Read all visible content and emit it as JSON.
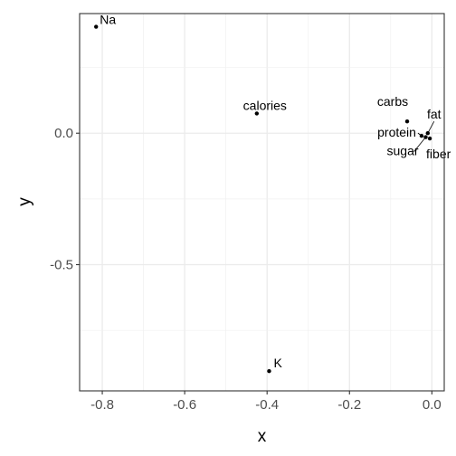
{
  "chart_data": {
    "type": "scatter",
    "title": "",
    "xlabel": "x",
    "ylabel": "y",
    "xlim": [
      -0.855,
      0.03
    ],
    "ylim": [
      -0.98,
      0.455
    ],
    "x_ticks": [
      -0.8,
      -0.6,
      -0.4,
      -0.2,
      0.0
    ],
    "x_tick_labels": [
      "-0.8",
      "-0.6",
      "-0.4",
      "-0.2",
      "0.0"
    ],
    "y_ticks": [
      -0.5,
      0.0
    ],
    "y_tick_labels": [
      "-0.5",
      "0.0"
    ],
    "grid": true,
    "points": [
      {
        "label": "Na",
        "x": -0.815,
        "y": 0.405
      },
      {
        "label": "calories",
        "x": -0.425,
        "y": 0.075
      },
      {
        "label": "carbs",
        "x": -0.06,
        "y": 0.045
      },
      {
        "label": "fat",
        "x": -0.01,
        "y": 0.0
      },
      {
        "label": "protein",
        "x": -0.025,
        "y": -0.01
      },
      {
        "label": "sugar",
        "x": -0.015,
        "y": -0.015
      },
      {
        "label": "fiber",
        "x": -0.005,
        "y": -0.02
      },
      {
        "label": "K",
        "x": -0.395,
        "y": -0.905
      }
    ]
  }
}
